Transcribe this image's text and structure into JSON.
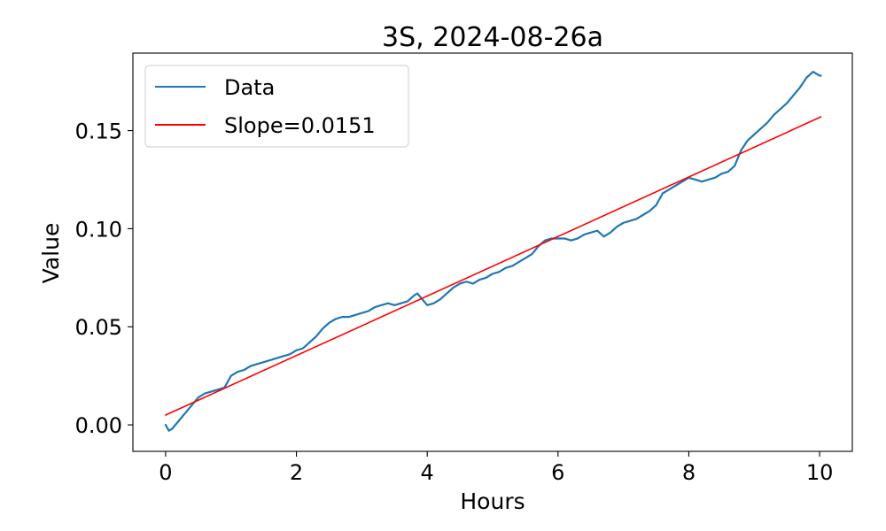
{
  "chart_data": {
    "type": "line",
    "title": "3S, 2024-08-26a",
    "xlabel": "Hours",
    "ylabel": "Value",
    "xlim": [
      -0.5,
      10.5
    ],
    "ylim": [
      -0.0135,
      0.1895
    ],
    "x_ticks": [
      0,
      2,
      4,
      6,
      8,
      10
    ],
    "x_tick_labels": [
      "0",
      "2",
      "4",
      "6",
      "8",
      "10"
    ],
    "y_ticks": [
      0.0,
      0.05,
      0.1,
      0.15
    ],
    "y_tick_labels": [
      "0.00",
      "0.05",
      "0.10",
      "0.15"
    ],
    "grid": false,
    "legend_position": "upper-left",
    "series": [
      {
        "name": "Data",
        "color": "#1f77b4",
        "x": [
          0.0,
          0.05,
          0.1,
          0.2,
          0.3,
          0.4,
          0.5,
          0.6,
          0.7,
          0.8,
          0.9,
          1.0,
          1.1,
          1.2,
          1.3,
          1.4,
          1.5,
          1.6,
          1.7,
          1.8,
          1.9,
          2.0,
          2.1,
          2.2,
          2.3,
          2.4,
          2.5,
          2.6,
          2.7,
          2.8,
          2.9,
          3.0,
          3.1,
          3.2,
          3.3,
          3.4,
          3.5,
          3.6,
          3.7,
          3.8,
          3.85,
          3.9,
          4.0,
          4.1,
          4.2,
          4.3,
          4.4,
          4.5,
          4.6,
          4.7,
          4.8,
          4.9,
          5.0,
          5.1,
          5.2,
          5.3,
          5.4,
          5.5,
          5.6,
          5.7,
          5.8,
          5.9,
          6.0,
          6.1,
          6.2,
          6.3,
          6.4,
          6.5,
          6.6,
          6.7,
          6.8,
          6.9,
          7.0,
          7.1,
          7.2,
          7.3,
          7.4,
          7.5,
          7.6,
          7.7,
          7.8,
          7.9,
          8.0,
          8.1,
          8.2,
          8.3,
          8.4,
          8.5,
          8.6,
          8.7,
          8.8,
          8.9,
          9.0,
          9.1,
          9.2,
          9.3,
          9.4,
          9.5,
          9.6,
          9.7,
          9.8,
          9.9,
          9.95,
          10.0,
          10.02
        ],
        "y": [
          0.0,
          -0.003,
          -0.002,
          0.002,
          0.006,
          0.01,
          0.014,
          0.016,
          0.017,
          0.018,
          0.019,
          0.025,
          0.027,
          0.028,
          0.03,
          0.031,
          0.032,
          0.033,
          0.034,
          0.035,
          0.036,
          0.038,
          0.039,
          0.042,
          0.045,
          0.049,
          0.052,
          0.054,
          0.055,
          0.055,
          0.056,
          0.057,
          0.058,
          0.06,
          0.061,
          0.062,
          0.061,
          0.062,
          0.063,
          0.066,
          0.067,
          0.065,
          0.061,
          0.062,
          0.064,
          0.067,
          0.07,
          0.072,
          0.073,
          0.072,
          0.074,
          0.075,
          0.077,
          0.078,
          0.08,
          0.081,
          0.083,
          0.085,
          0.087,
          0.091,
          0.094,
          0.095,
          0.095,
          0.095,
          0.094,
          0.095,
          0.097,
          0.098,
          0.099,
          0.096,
          0.098,
          0.101,
          0.103,
          0.104,
          0.105,
          0.107,
          0.109,
          0.112,
          0.118,
          0.12,
          0.122,
          0.124,
          0.126,
          0.125,
          0.124,
          0.125,
          0.126,
          0.128,
          0.129,
          0.132,
          0.14,
          0.145,
          0.148,
          0.151,
          0.154,
          0.158,
          0.161,
          0.164,
          0.168,
          0.172,
          0.177,
          0.18,
          0.179,
          0.178,
          0.178
        ]
      },
      {
        "name": "Slope=0.0151",
        "color": "#ff0000",
        "x": [
          0.0,
          10.02
        ],
        "y": [
          0.005,
          0.157
        ]
      }
    ]
  }
}
